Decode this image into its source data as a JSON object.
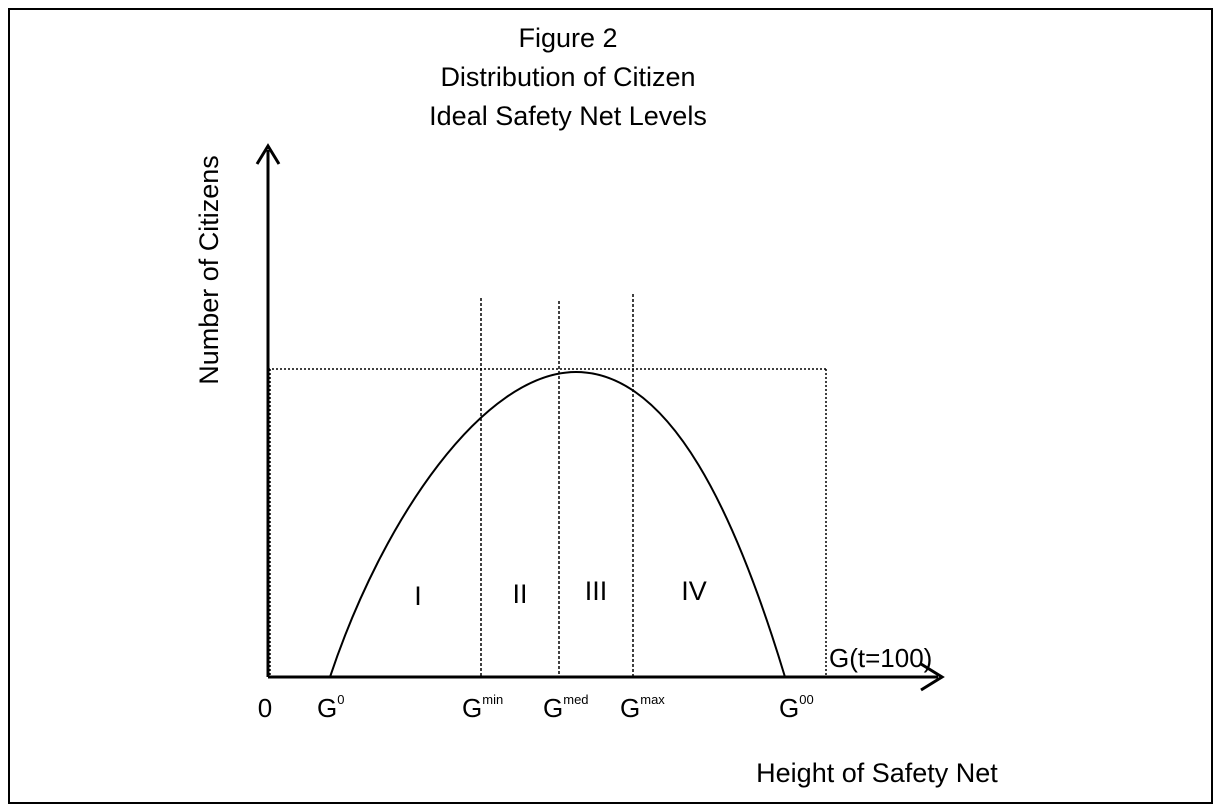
{
  "title": {
    "line1": "Figure 2",
    "line2": "Distribution of Citizen",
    "line3": "Ideal Safety Net Levels"
  },
  "axes": {
    "y_label": "Number of Citizens",
    "x_label": "Height of Safety Net",
    "origin_label": "0"
  },
  "regions": [
    "I",
    "II",
    "III",
    "IV"
  ],
  "x_markers": [
    {
      "base": "G",
      "sup": "0"
    },
    {
      "base": "G",
      "sup": "min"
    },
    {
      "base": "G",
      "sup": "med"
    },
    {
      "base": "G",
      "sup": "max"
    },
    {
      "base": "G",
      "sup": "00"
    }
  ],
  "upper_bound_label": "G(t=100)",
  "colors": {
    "ink": "#000000",
    "background": "#ffffff"
  }
}
